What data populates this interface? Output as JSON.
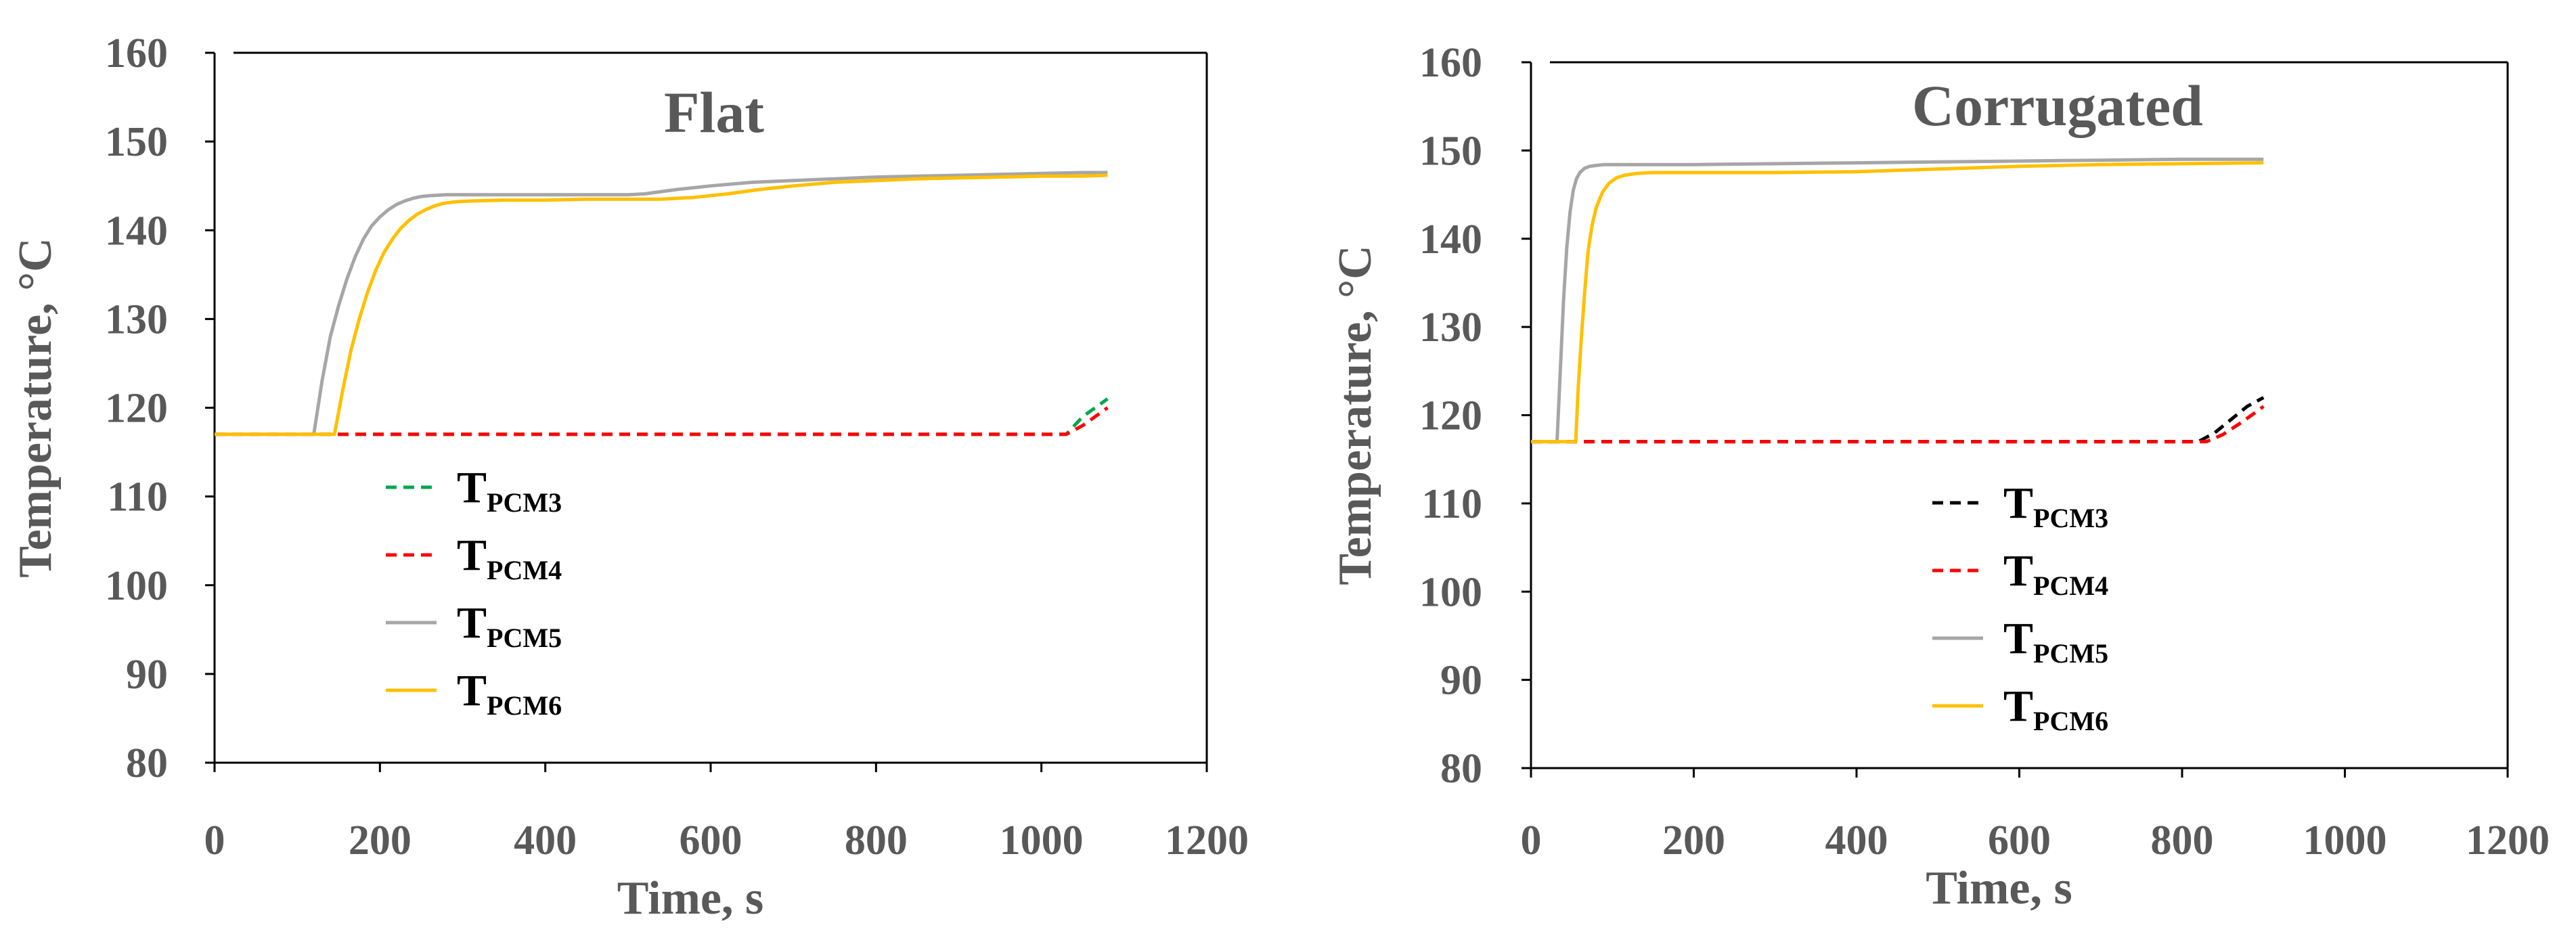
{
  "chart_data": [
    {
      "type": "line",
      "title": "Flat",
      "xlabel": "Time, s",
      "ylabel": "Temperature, °C",
      "xlim": [
        0,
        1200
      ],
      "ylim": [
        80,
        160
      ],
      "xticks": [
        "0",
        "200",
        "400",
        "600",
        "800",
        "1000",
        "1200"
      ],
      "yticks": [
        "80",
        "90",
        "100",
        "110",
        "120",
        "130",
        "140",
        "150",
        "160"
      ],
      "grid": false,
      "legend_position": "lower-left",
      "series": [
        {
          "name": "T",
          "subscript": "PCM3",
          "color": "#00a651",
          "dash": true,
          "x": [
            0,
            1030,
            1050,
            1080
          ],
          "y": [
            117,
            117,
            119,
            121
          ]
        },
        {
          "name": "T",
          "subscript": "PCM4",
          "color": "#ff0000",
          "dash": true,
          "x": [
            0,
            1030,
            1050,
            1080
          ],
          "y": [
            117,
            117,
            118,
            120
          ]
        },
        {
          "name": "T",
          "subscript": "PCM5",
          "color": "#a6a6a6",
          "dash": false,
          "x": [
            0,
            120,
            130,
            140,
            150,
            160,
            170,
            180,
            190,
            200,
            210,
            220,
            230,
            240,
            250,
            260,
            280,
            300,
            350,
            400,
            450,
            500,
            520,
            560,
            600,
            650,
            700,
            750,
            800,
            850,
            900,
            950,
            1000,
            1050,
            1080
          ],
          "y": [
            117,
            117,
            123,
            128,
            131.5,
            134.5,
            137,
            139,
            140.5,
            141.5,
            142.3,
            142.9,
            143.3,
            143.6,
            143.8,
            143.9,
            144,
            144,
            144,
            144,
            144,
            144,
            144.1,
            144.6,
            145,
            145.4,
            145.6,
            145.8,
            146,
            146.1,
            146.2,
            146.3,
            146.4,
            146.5,
            146.5
          ]
        },
        {
          "name": "T",
          "subscript": "PCM6",
          "color": "#ffc000",
          "dash": false,
          "x": [
            0,
            145,
            155,
            165,
            175,
            185,
            195,
            205,
            215,
            225,
            235,
            245,
            255,
            265,
            275,
            290,
            310,
            350,
            400,
            450,
            500,
            540,
            580,
            620,
            660,
            700,
            750,
            800,
            850,
            900,
            950,
            1000,
            1050,
            1080
          ],
          "y": [
            117,
            117,
            122,
            126.5,
            130,
            133,
            135.5,
            137.5,
            139,
            140.2,
            141.1,
            141.8,
            142.3,
            142.7,
            143,
            143.2,
            143.3,
            143.4,
            143.4,
            143.5,
            143.5,
            143.5,
            143.7,
            144.1,
            144.6,
            145,
            145.4,
            145.6,
            145.8,
            145.9,
            146,
            146.1,
            146.1,
            146.2
          ]
        }
      ]
    },
    {
      "type": "line",
      "title": "Corrugated",
      "xlabel": "Time, s",
      "ylabel": "Temperature, °C",
      "xlim": [
        0,
        1200
      ],
      "ylim": [
        80,
        160
      ],
      "xticks": [
        "0",
        "200",
        "400",
        "600",
        "800",
        "1000",
        "1200"
      ],
      "yticks": [
        "80",
        "90",
        "100",
        "110",
        "120",
        "130",
        "140",
        "150",
        "160"
      ],
      "grid": false,
      "legend_position": "lower-center",
      "series": [
        {
          "name": "T",
          "subscript": "PCM3",
          "color": "#000000",
          "dash": true,
          "x": [
            0,
            820,
            840,
            860,
            880,
            900
          ],
          "y": [
            117,
            117,
            118,
            119.5,
            121,
            122
          ]
        },
        {
          "name": "T",
          "subscript": "PCM4",
          "color": "#ff0000",
          "dash": true,
          "x": [
            0,
            830,
            850,
            870,
            890,
            900
          ],
          "y": [
            117,
            117,
            117.8,
            119,
            120.3,
            121
          ]
        },
        {
          "name": "T",
          "subscript": "PCM5",
          "color": "#a6a6a6",
          "dash": false,
          "x": [
            0,
            32,
            36,
            40,
            44,
            48,
            52,
            56,
            60,
            66,
            72,
            80,
            90,
            100,
            120,
            150,
            200,
            300,
            400,
            500,
            600,
            700,
            800,
            900
          ],
          "y": [
            117,
            117,
            125,
            133,
            139,
            143,
            145.5,
            146.8,
            147.5,
            148,
            148.2,
            148.3,
            148.4,
            148.4,
            148.4,
            148.4,
            148.4,
            148.5,
            148.6,
            148.7,
            148.8,
            148.9,
            149,
            149
          ]
        },
        {
          "name": "T",
          "subscript": "PCM6",
          "color": "#ffc000",
          "dash": false,
          "x": [
            0,
            55,
            58,
            62,
            66,
            70,
            75,
            80,
            88,
            96,
            105,
            115,
            130,
            150,
            200,
            300,
            400,
            500,
            600,
            700,
            800,
            900
          ],
          "y": [
            117,
            117,
            123,
            129,
            134,
            138.5,
            141.5,
            143.5,
            145.3,
            146.3,
            146.9,
            147.2,
            147.4,
            147.5,
            147.5,
            147.5,
            147.6,
            147.9,
            148.2,
            148.4,
            148.5,
            148.6
          ]
        }
      ]
    }
  ]
}
